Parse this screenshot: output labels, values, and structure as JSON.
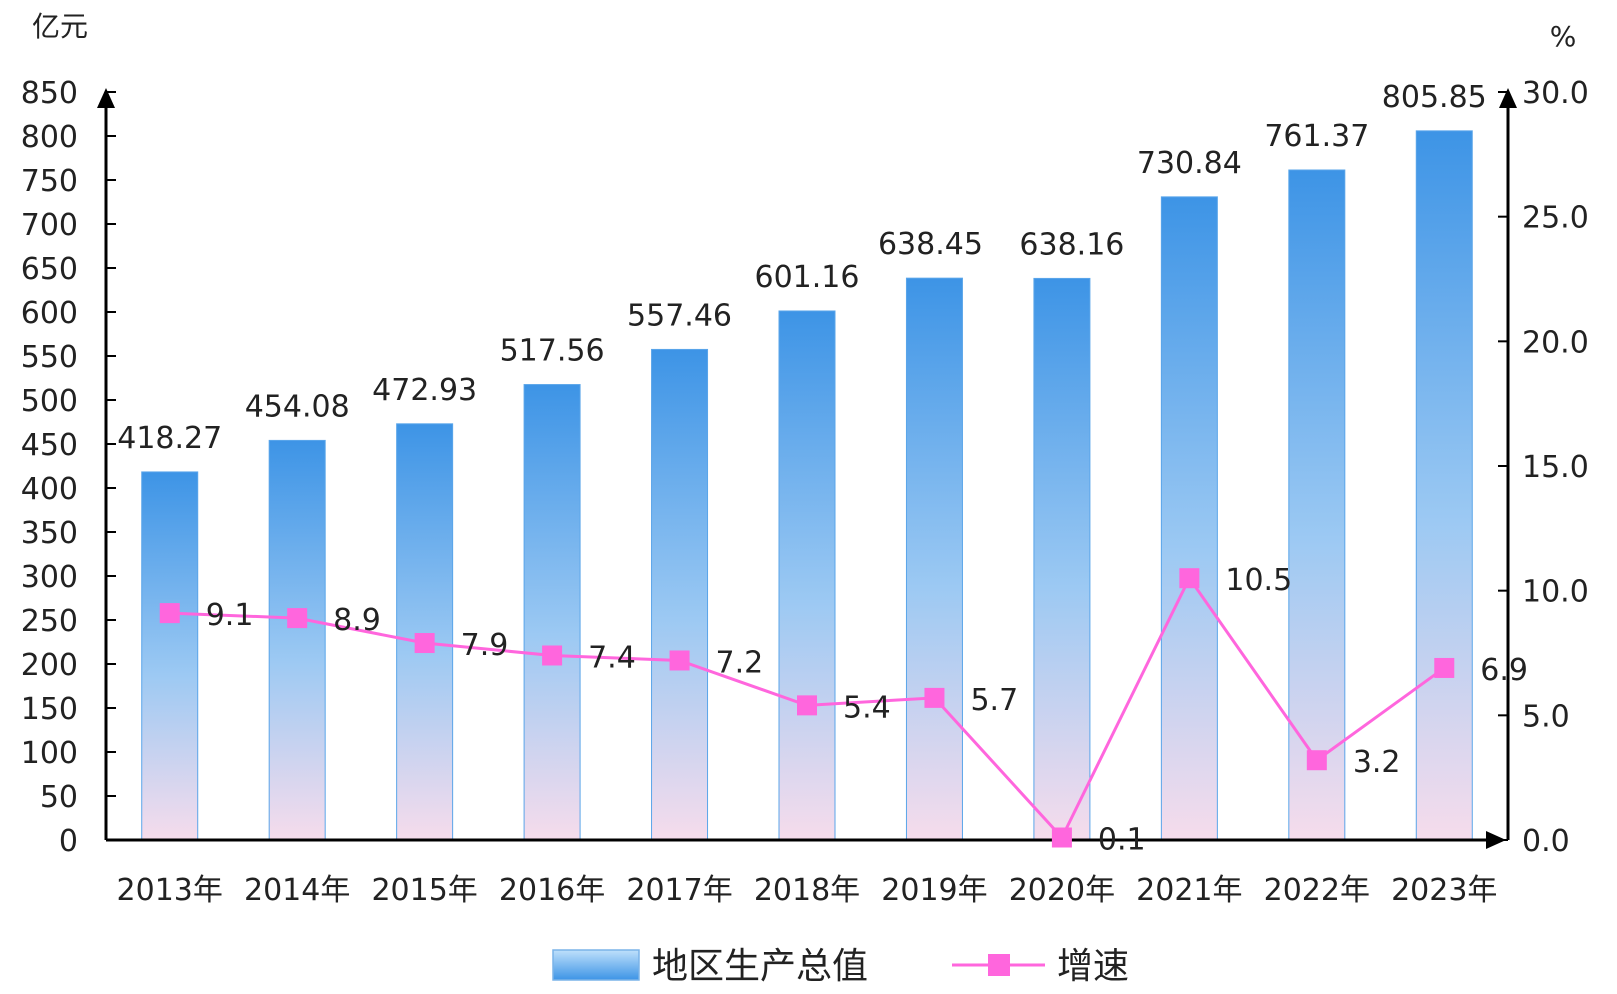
{
  "chart_data": {
    "type": "bar",
    "categories": [
      "2013年",
      "2014年",
      "2015年",
      "2016年",
      "2017年",
      "2018年",
      "2019年",
      "2020年",
      "2021年",
      "2022年",
      "2023年"
    ],
    "series": [
      {
        "name": "地区生产总值",
        "type": "bar",
        "axis": "left",
        "values": [
          418.27,
          454.08,
          472.93,
          517.56,
          557.46,
          601.16,
          638.45,
          638.16,
          730.84,
          761.37,
          805.85
        ]
      },
      {
        "name": "增速",
        "type": "line",
        "axis": "right",
        "values": [
          9.1,
          8.9,
          7.9,
          7.4,
          7.2,
          5.4,
          5.7,
          0.1,
          10.5,
          3.2,
          6.9
        ]
      }
    ],
    "bar_labels": [
      "418.27",
      "454.08",
      "472.93",
      "517.56",
      "557.46",
      "601.16",
      "638.45",
      "638.16",
      "730.84",
      "761.37",
      "805.85"
    ],
    "line_labels": [
      "9.1",
      "8.9",
      "7.9",
      "7.4",
      "7.2",
      "5.4",
      "5.7",
      "0.1",
      "10.5",
      "3.2",
      "6.9"
    ],
    "y_left": {
      "unit": "亿元",
      "range": [
        0,
        850
      ],
      "ticks": [
        "0",
        "50",
        "100",
        "150",
        "200",
        "250",
        "300",
        "350",
        "400",
        "450",
        "500",
        "550",
        "600",
        "650",
        "700",
        "750",
        "800",
        "850"
      ]
    },
    "y_right": {
      "unit": "%",
      "range": [
        0,
        30
      ],
      "ticks": [
        "0.0",
        "5.0",
        "10.0",
        "15.0",
        "20.0",
        "25.0",
        "30.0"
      ]
    },
    "legend": {
      "position": "bottom"
    },
    "grid": false,
    "colors": {
      "bar_top": "#3d94e6",
      "bar_bottom": "#f3dcec",
      "line": "#ff66dd",
      "axis": "#000000"
    }
  }
}
